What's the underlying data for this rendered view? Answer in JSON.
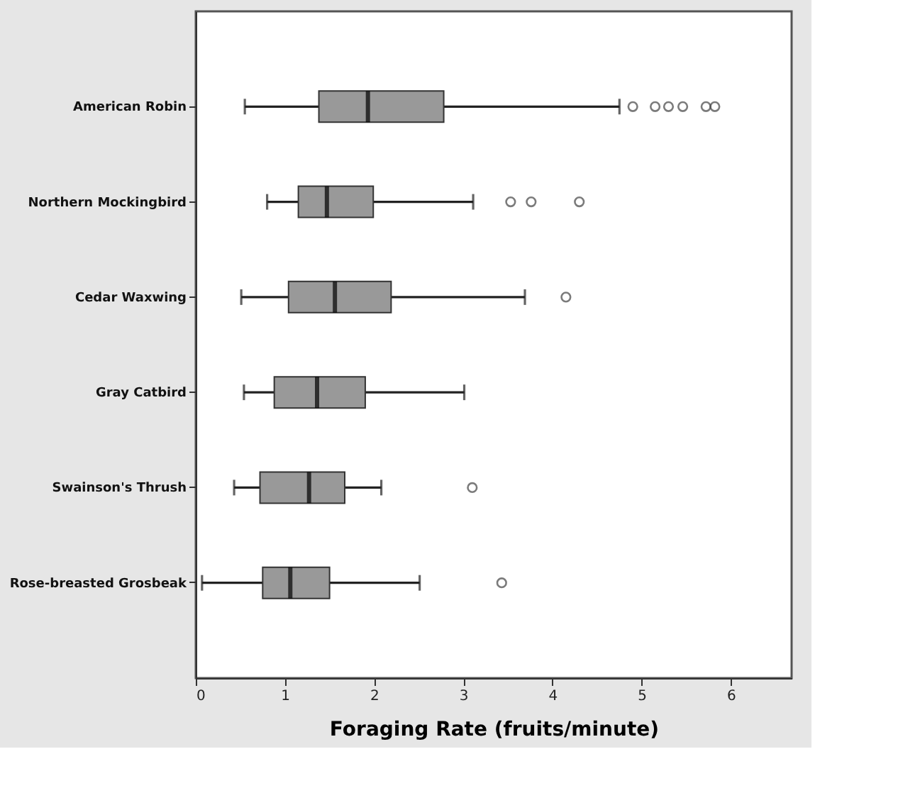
{
  "chart_data": {
    "type": "box",
    "orientation": "horizontal",
    "xlabel": "Foraging Rate (fruits/minute)",
    "categories": [
      "American Robin",
      "Northern Mockingbird",
      "Cedar Waxwing",
      "Gray Catbird",
      "Swainson's Thrush",
      "Rose-breasted Grosbeak"
    ],
    "boxes": [
      {
        "low": 0.55,
        "q1": 1.38,
        "median": 1.93,
        "q3": 2.78,
        "high": 4.75,
        "outliers": [
          4.9,
          5.15,
          5.3,
          5.46,
          5.72,
          5.82
        ]
      },
      {
        "low": 0.8,
        "q1": 1.15,
        "median": 1.47,
        "q3": 1.99,
        "high": 3.11,
        "outliers": [
          3.53,
          3.76,
          4.3
        ]
      },
      {
        "low": 0.51,
        "q1": 1.04,
        "median": 1.56,
        "q3": 2.19,
        "high": 3.69,
        "outliers": [
          4.15
        ]
      },
      {
        "low": 0.54,
        "q1": 0.88,
        "median": 1.36,
        "q3": 1.9,
        "high": 3.01
      },
      {
        "low": 0.43,
        "q1": 0.72,
        "median": 1.27,
        "q3": 1.67,
        "high": 2.08,
        "outliers": [
          3.1
        ]
      },
      {
        "low": 0.07,
        "q1": 0.75,
        "median": 1.06,
        "q3": 1.5,
        "high": 2.51,
        "outliers": [
          3.43
        ]
      }
    ],
    "color": "#999999",
    "xlim": [
      0,
      6.68
    ],
    "xticks": [
      0,
      1,
      2,
      3,
      4,
      5,
      6
    ],
    "grid": false,
    "marker": "circle"
  }
}
